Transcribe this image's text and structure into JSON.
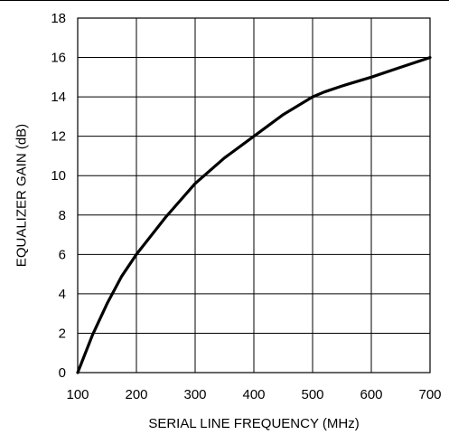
{
  "chart_data": {
    "type": "line",
    "title": "",
    "xlabel": "SERIAL LINE FREQUENCY (MHz)",
    "ylabel": "EQUALIZER GAIN (dB)",
    "xlim": [
      100,
      700
    ],
    "ylim": [
      0,
      18
    ],
    "xticks": [
      100,
      200,
      300,
      400,
      500,
      600,
      700
    ],
    "yticks": [
      0,
      2,
      4,
      6,
      8,
      10,
      12,
      14,
      16,
      18
    ],
    "grid": true,
    "legend": "none",
    "series": [
      {
        "x": [
          100,
          125,
          150,
          175,
          200,
          250,
          300,
          350,
          400,
          450,
          500,
          520,
          550,
          600,
          650,
          700
        ],
        "y": [
          0,
          1.9,
          3.5,
          4.9,
          6.0,
          7.9,
          9.6,
          10.9,
          12.0,
          13.1,
          14.0,
          14.25,
          14.55,
          15.0,
          15.5,
          16.0
        ]
      }
    ],
    "colors": {
      "line": "#000000",
      "grid": "#000000"
    }
  }
}
